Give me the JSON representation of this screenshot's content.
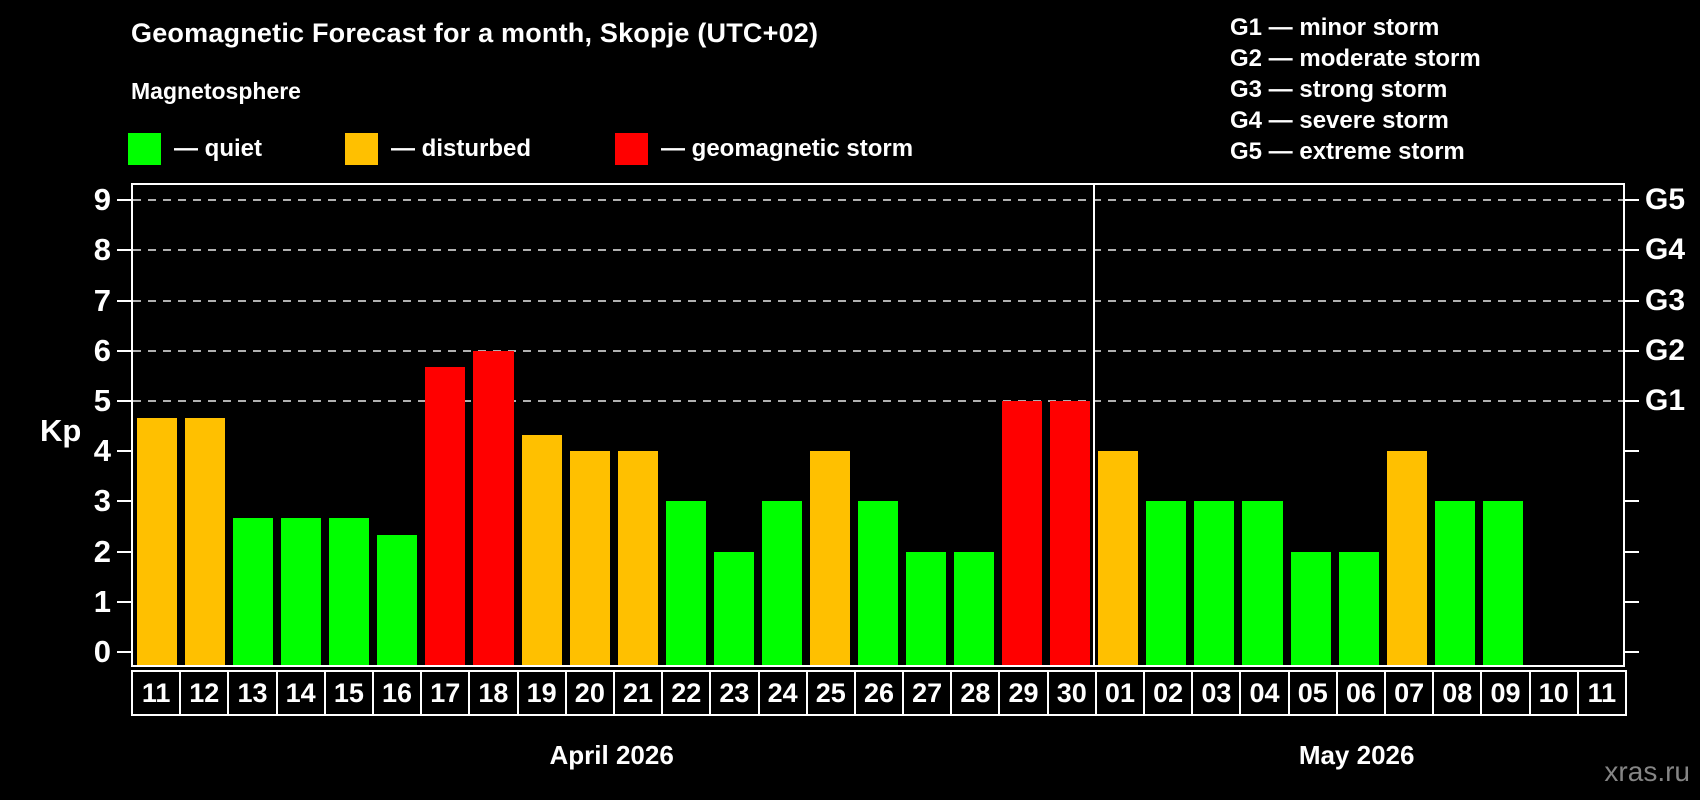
{
  "title": "Geomagnetic Forecast for a month, Skopje (UTC+02)",
  "subtitle": "Magnetosphere",
  "legend": [
    {
      "name": "quiet",
      "label": "— quiet",
      "color": "#00ff00"
    },
    {
      "name": "disturbed",
      "label": "— disturbed",
      "color": "#ffc000"
    },
    {
      "name": "storm",
      "label": "— geomagnetic storm",
      "color": "#ff0000"
    }
  ],
  "g_scale_legend": [
    "G1 — minor storm",
    "G2 — moderate storm",
    "G3 — strong storm",
    "G4 — severe storm",
    "G5 — extreme storm"
  ],
  "watermark": "xras.ru",
  "colors": {
    "quiet": "#00ff00",
    "disturbed": "#ffc000",
    "storm": "#ff0000",
    "background": "#000000",
    "grid": "#b0b0b0",
    "axis": "#ffffff",
    "watermark": "#858585"
  },
  "chart_data": {
    "type": "bar",
    "title": "Geomagnetic Forecast for a month, Skopje (UTC+02)",
    "xlabel": "",
    "ylabel": "Kp",
    "ylim": [
      0,
      9
    ],
    "yticks": [
      0,
      1,
      2,
      3,
      4,
      5,
      6,
      7,
      8,
      9
    ],
    "gridlines_at_kp": [
      5,
      6,
      7,
      8,
      9
    ],
    "grid_style": "horizontal dashed lines only at Kp 5-9 (storm levels G1-G5)",
    "legend_position": "top-left",
    "right_axis_labels": [
      {
        "kp": 5,
        "label": "G1"
      },
      {
        "kp": 6,
        "label": "G2"
      },
      {
        "kp": 7,
        "label": "G3"
      },
      {
        "kp": 8,
        "label": "G4"
      },
      {
        "kp": 9,
        "label": "G5"
      }
    ],
    "months": [
      {
        "label": "April 2026",
        "days": [
          {
            "day": "11",
            "kp": 4.67,
            "status": "disturbed"
          },
          {
            "day": "12",
            "kp": 4.67,
            "status": "disturbed"
          },
          {
            "day": "13",
            "kp": 2.67,
            "status": "quiet"
          },
          {
            "day": "14",
            "kp": 2.67,
            "status": "quiet"
          },
          {
            "day": "15",
            "kp": 2.67,
            "status": "quiet"
          },
          {
            "day": "16",
            "kp": 2.33,
            "status": "quiet"
          },
          {
            "day": "17",
            "kp": 5.67,
            "status": "storm"
          },
          {
            "day": "18",
            "kp": 6.0,
            "status": "storm"
          },
          {
            "day": "19",
            "kp": 4.33,
            "status": "disturbed"
          },
          {
            "day": "20",
            "kp": 4.0,
            "status": "disturbed"
          },
          {
            "day": "21",
            "kp": 4.0,
            "status": "disturbed"
          },
          {
            "day": "22",
            "kp": 3.0,
            "status": "quiet"
          },
          {
            "day": "23",
            "kp": 2.0,
            "status": "quiet"
          },
          {
            "day": "24",
            "kp": 3.0,
            "status": "quiet"
          },
          {
            "day": "25",
            "kp": 4.0,
            "status": "disturbed"
          },
          {
            "day": "26",
            "kp": 3.0,
            "status": "quiet"
          },
          {
            "day": "27",
            "kp": 2.0,
            "status": "quiet"
          },
          {
            "day": "28",
            "kp": 2.0,
            "status": "quiet"
          },
          {
            "day": "29",
            "kp": 5.0,
            "status": "storm"
          },
          {
            "day": "30",
            "kp": 5.0,
            "status": "storm"
          }
        ]
      },
      {
        "label": "May 2026",
        "days": [
          {
            "day": "01",
            "kp": 4.0,
            "status": "disturbed"
          },
          {
            "day": "02",
            "kp": 3.0,
            "status": "quiet"
          },
          {
            "day": "03",
            "kp": 3.0,
            "status": "quiet"
          },
          {
            "day": "04",
            "kp": 3.0,
            "status": "quiet"
          },
          {
            "day": "05",
            "kp": 2.0,
            "status": "quiet"
          },
          {
            "day": "06",
            "kp": 2.0,
            "status": "quiet"
          },
          {
            "day": "07",
            "kp": 4.0,
            "status": "disturbed"
          },
          {
            "day": "08",
            "kp": 3.0,
            "status": "quiet"
          },
          {
            "day": "09",
            "kp": 3.0,
            "status": "quiet"
          },
          {
            "day": "10",
            "kp": null,
            "status": null
          },
          {
            "day": "11",
            "kp": null,
            "status": null
          }
        ]
      }
    ]
  }
}
